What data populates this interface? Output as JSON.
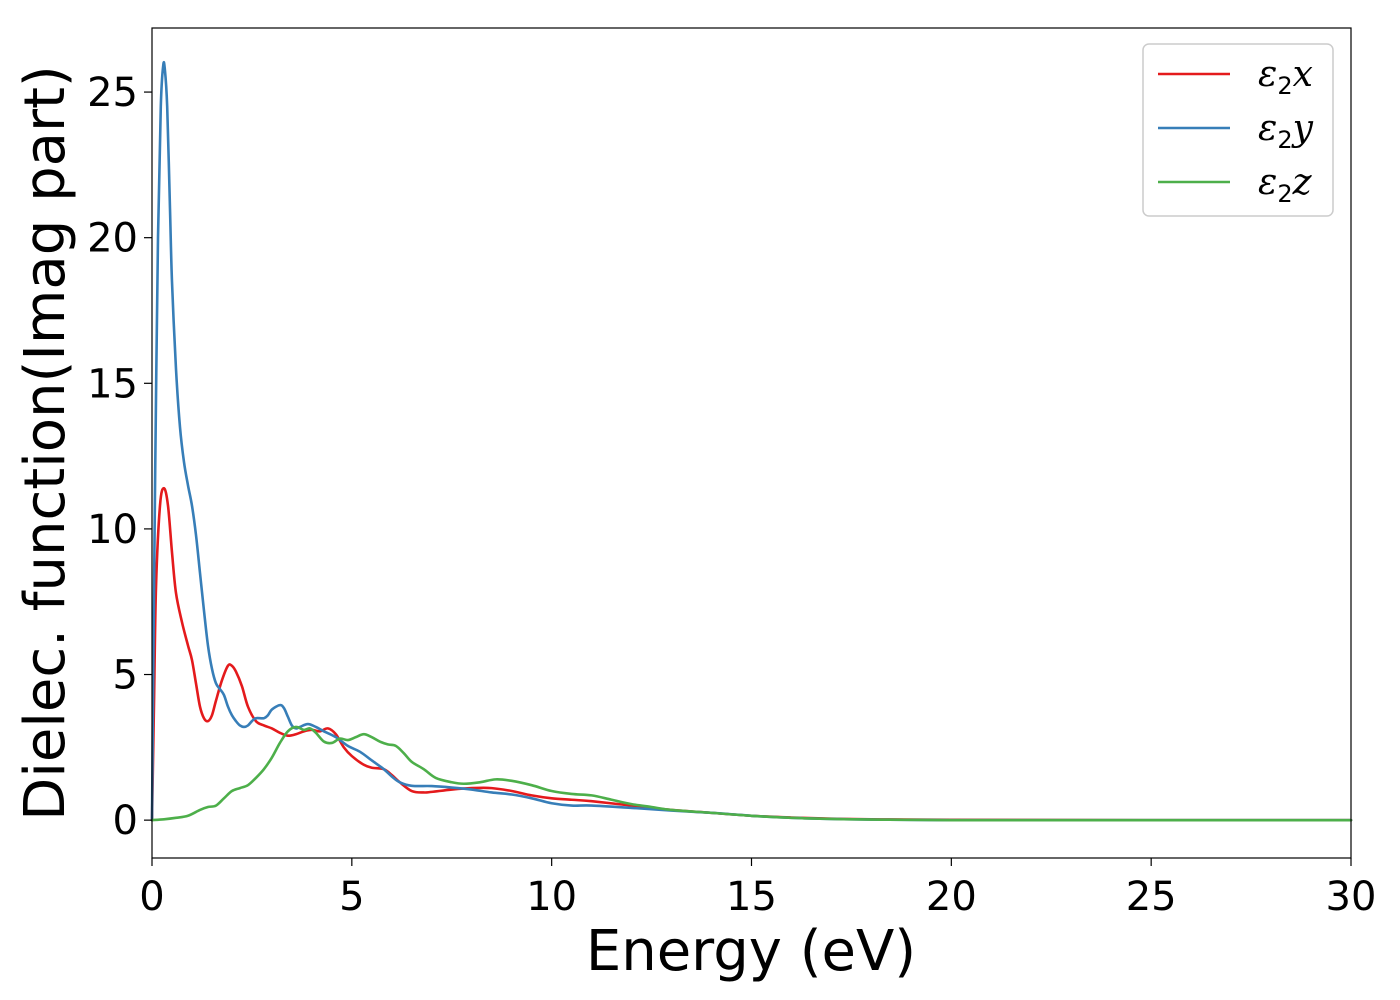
{
  "chart_data": {
    "type": "line",
    "title": "",
    "xlabel": "Energy (eV)",
    "ylabel": "Dielec. function(Imag part)",
    "xlim": [
      0,
      30
    ],
    "ylim": [
      -1.3,
      27.2
    ],
    "xticks": [
      0,
      5,
      10,
      15,
      20,
      25,
      30
    ],
    "yticks": [
      0,
      5,
      10,
      15,
      20,
      25
    ],
    "xtick_labels": [
      "0",
      "5",
      "10",
      "15",
      "20",
      "25",
      "30"
    ],
    "ytick_labels": [
      "0",
      "5",
      "10",
      "15",
      "20",
      "25"
    ],
    "grid": false,
    "legend_position": "top-right",
    "series": [
      {
        "name": "ε2x",
        "legend_main": "ε",
        "legend_sub": "2",
        "legend_var": "x",
        "color": "#e41a1c",
        "points": [
          [
            0,
            0
          ],
          [
            0.05,
            4
          ],
          [
            0.1,
            8
          ],
          [
            0.2,
            10.8
          ],
          [
            0.3,
            11.4
          ],
          [
            0.4,
            10.8
          ],
          [
            0.5,
            9.2
          ],
          [
            0.6,
            7.8
          ],
          [
            0.75,
            6.8
          ],
          [
            0.9,
            6.0
          ],
          [
            1.0,
            5.5
          ],
          [
            1.1,
            4.7
          ],
          [
            1.2,
            3.9
          ],
          [
            1.3,
            3.5
          ],
          [
            1.4,
            3.4
          ],
          [
            1.5,
            3.6
          ],
          [
            1.6,
            4.1
          ],
          [
            1.75,
            4.8
          ],
          [
            1.9,
            5.3
          ],
          [
            2.0,
            5.3
          ],
          [
            2.1,
            5.1
          ],
          [
            2.25,
            4.6
          ],
          [
            2.4,
            3.9
          ],
          [
            2.6,
            3.4
          ],
          [
            2.8,
            3.25
          ],
          [
            3.0,
            3.15
          ],
          [
            3.2,
            3.0
          ],
          [
            3.4,
            2.9
          ],
          [
            3.6,
            2.95
          ],
          [
            3.8,
            3.05
          ],
          [
            4.0,
            3.1
          ],
          [
            4.2,
            3.05
          ],
          [
            4.4,
            3.15
          ],
          [
            4.6,
            2.95
          ],
          [
            4.8,
            2.5
          ],
          [
            5.0,
            2.2
          ],
          [
            5.3,
            1.9
          ],
          [
            5.5,
            1.8
          ],
          [
            5.8,
            1.75
          ],
          [
            6.0,
            1.55
          ],
          [
            6.2,
            1.3
          ],
          [
            6.5,
            1.0
          ],
          [
            6.8,
            0.95
          ],
          [
            7.0,
            0.97
          ],
          [
            7.5,
            1.05
          ],
          [
            8.0,
            1.1
          ],
          [
            8.5,
            1.1
          ],
          [
            9.0,
            1.0
          ],
          [
            9.5,
            0.85
          ],
          [
            10.0,
            0.75
          ],
          [
            10.5,
            0.7
          ],
          [
            11.0,
            0.65
          ],
          [
            12.0,
            0.5
          ],
          [
            13.0,
            0.35
          ],
          [
            14.0,
            0.25
          ],
          [
            15.0,
            0.15
          ],
          [
            16.0,
            0.09
          ],
          [
            17.0,
            0.05
          ],
          [
            18.0,
            0.03
          ],
          [
            20.0,
            0.01
          ],
          [
            25.0,
            0.0
          ],
          [
            30.0,
            0.0
          ]
        ]
      },
      {
        "name": "ε2y",
        "legend_main": "ε",
        "legend_sub": "2",
        "legend_var": "y",
        "color": "#377eb8",
        "points": [
          [
            0,
            0
          ],
          [
            0.03,
            5
          ],
          [
            0.08,
            12
          ],
          [
            0.15,
            20
          ],
          [
            0.22,
            24.5
          ],
          [
            0.28,
            25.9
          ],
          [
            0.32,
            25.8
          ],
          [
            0.38,
            24.5
          ],
          [
            0.45,
            21
          ],
          [
            0.5,
            18.5
          ],
          [
            0.6,
            15.5
          ],
          [
            0.7,
            13.5
          ],
          [
            0.8,
            12.3
          ],
          [
            0.9,
            11.5
          ],
          [
            1.0,
            10.8
          ],
          [
            1.1,
            9.8
          ],
          [
            1.2,
            8.5
          ],
          [
            1.3,
            7.2
          ],
          [
            1.4,
            6.0
          ],
          [
            1.5,
            5.2
          ],
          [
            1.6,
            4.7
          ],
          [
            1.7,
            4.5
          ],
          [
            1.8,
            4.3
          ],
          [
            1.9,
            3.9
          ],
          [
            2.0,
            3.6
          ],
          [
            2.1,
            3.4
          ],
          [
            2.2,
            3.25
          ],
          [
            2.3,
            3.2
          ],
          [
            2.4,
            3.25
          ],
          [
            2.5,
            3.4
          ],
          [
            2.6,
            3.5
          ],
          [
            2.8,
            3.5
          ],
          [
            2.9,
            3.6
          ],
          [
            3.0,
            3.8
          ],
          [
            3.2,
            3.95
          ],
          [
            3.3,
            3.85
          ],
          [
            3.4,
            3.55
          ],
          [
            3.5,
            3.25
          ],
          [
            3.6,
            3.15
          ],
          [
            3.7,
            3.2
          ],
          [
            3.9,
            3.3
          ],
          [
            4.1,
            3.2
          ],
          [
            4.3,
            3.05
          ],
          [
            4.6,
            2.85
          ],
          [
            4.9,
            2.55
          ],
          [
            5.2,
            2.35
          ],
          [
            5.5,
            2.05
          ],
          [
            5.8,
            1.75
          ],
          [
            6.0,
            1.5
          ],
          [
            6.2,
            1.3
          ],
          [
            6.5,
            1.18
          ],
          [
            7.0,
            1.17
          ],
          [
            7.5,
            1.12
          ],
          [
            8.0,
            1.05
          ],
          [
            8.5,
            0.95
          ],
          [
            9.0,
            0.88
          ],
          [
            9.5,
            0.75
          ],
          [
            10.0,
            0.58
          ],
          [
            10.5,
            0.5
          ],
          [
            11.0,
            0.5
          ],
          [
            12.0,
            0.42
          ],
          [
            13.0,
            0.33
          ],
          [
            14.0,
            0.25
          ],
          [
            15.0,
            0.15
          ],
          [
            16.0,
            0.08
          ],
          [
            17.0,
            0.04
          ],
          [
            18.0,
            0.02
          ],
          [
            20.0,
            0.0
          ],
          [
            25.0,
            0.0
          ],
          [
            30.0,
            0.0
          ]
        ]
      },
      {
        "name": "ε2z",
        "legend_main": "ε",
        "legend_sub": "2",
        "legend_var": "z",
        "color": "#4daf4a",
        "points": [
          [
            0,
            0
          ],
          [
            0.3,
            0.03
          ],
          [
            0.6,
            0.08
          ],
          [
            0.9,
            0.15
          ],
          [
            1.2,
            0.35
          ],
          [
            1.4,
            0.45
          ],
          [
            1.6,
            0.5
          ],
          [
            1.8,
            0.75
          ],
          [
            2.0,
            1.0
          ],
          [
            2.2,
            1.1
          ],
          [
            2.4,
            1.2
          ],
          [
            2.6,
            1.45
          ],
          [
            2.8,
            1.75
          ],
          [
            3.0,
            2.15
          ],
          [
            3.2,
            2.65
          ],
          [
            3.4,
            3.05
          ],
          [
            3.6,
            3.2
          ],
          [
            3.8,
            3.1
          ],
          [
            3.95,
            3.15
          ],
          [
            4.1,
            3.0
          ],
          [
            4.3,
            2.7
          ],
          [
            4.5,
            2.65
          ],
          [
            4.7,
            2.8
          ],
          [
            4.9,
            2.75
          ],
          [
            5.1,
            2.85
          ],
          [
            5.3,
            2.95
          ],
          [
            5.5,
            2.85
          ],
          [
            5.7,
            2.7
          ],
          [
            5.9,
            2.6
          ],
          [
            6.1,
            2.55
          ],
          [
            6.3,
            2.3
          ],
          [
            6.5,
            2.0
          ],
          [
            6.8,
            1.75
          ],
          [
            7.1,
            1.45
          ],
          [
            7.5,
            1.3
          ],
          [
            7.8,
            1.25
          ],
          [
            8.2,
            1.3
          ],
          [
            8.6,
            1.4
          ],
          [
            9.0,
            1.35
          ],
          [
            9.5,
            1.2
          ],
          [
            10.0,
            1.0
          ],
          [
            10.5,
            0.9
          ],
          [
            11.0,
            0.85
          ],
          [
            11.5,
            0.7
          ],
          [
            12.0,
            0.55
          ],
          [
            12.5,
            0.45
          ],
          [
            13.0,
            0.35
          ],
          [
            14.0,
            0.25
          ],
          [
            15.0,
            0.15
          ],
          [
            16.0,
            0.08
          ],
          [
            17.0,
            0.04
          ],
          [
            18.0,
            0.02
          ],
          [
            20.0,
            0.0
          ],
          [
            25.0,
            0.0
          ],
          [
            30.0,
            0.0
          ]
        ]
      }
    ]
  }
}
